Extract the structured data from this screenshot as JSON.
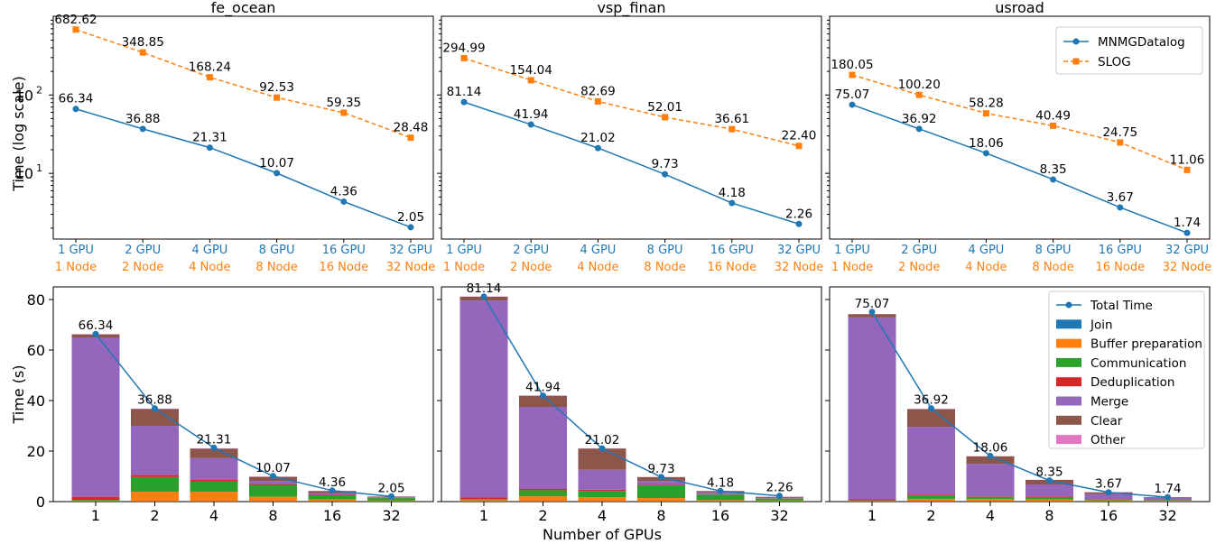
{
  "figure": {
    "xlabel": "Number of GPUs",
    "top_ylabel": "Time (log scale)",
    "bottom_ylabel": "Time (s)"
  },
  "colors": {
    "mnmg": "#1f77b4",
    "slog": "#ff7f0e",
    "join": "#1f77b4",
    "buffer": "#ff7f0e",
    "communication": "#2ca02c",
    "dedup": "#d62728",
    "merge": "#9467bd",
    "clear": "#8c564b",
    "other": "#e377c2"
  },
  "chart_data": [
    {
      "type": "line",
      "title": "fe_ocean",
      "ylabel": "Time (log scale)",
      "yscale": "log",
      "gpu_labels": [
        "1 GPU",
        "2 GPU",
        "4 GPU",
        "8 GPU",
        "16 GPU",
        "32 GPU"
      ],
      "node_labels": [
        "1 Node",
        "2 Node",
        "4 Node",
        "8 Node",
        "16 Node",
        "32 Node"
      ],
      "series": [
        {
          "key": "mnmg",
          "values": [
            66.34,
            36.88,
            21.31,
            10.07,
            4.36,
            2.05
          ],
          "labels": [
            "66.34",
            "36.88",
            "21.31",
            "10.07",
            "4.36",
            "2.05"
          ]
        },
        {
          "key": "slog",
          "values": [
            682.62,
            348.85,
            168.24,
            92.53,
            59.35,
            28.48
          ],
          "labels": [
            "682.62",
            "348.85",
            "168.24",
            "92.53",
            "59.35",
            "28.48"
          ]
        }
      ]
    },
    {
      "type": "line",
      "title": "vsp_finan",
      "yscale": "log",
      "gpu_labels": [
        "1 GPU",
        "2 GPU",
        "4 GPU",
        "8 GPU",
        "16 GPU",
        "32 GPU"
      ],
      "node_labels": [
        "1 Node",
        "2 Node",
        "4 Node",
        "8 Node",
        "16 Node",
        "32 Node"
      ],
      "series": [
        {
          "key": "mnmg",
          "values": [
            81.14,
            41.94,
            21.02,
            9.73,
            4.18,
            2.26
          ],
          "labels": [
            "81.14",
            "41.94",
            "21.02",
            "9.73",
            "4.18",
            "2.26"
          ]
        },
        {
          "key": "slog",
          "values": [
            294.99,
            154.04,
            82.69,
            52.01,
            36.61,
            22.4
          ],
          "labels": [
            "294.99",
            "154.04",
            "82.69",
            "52.01",
            "36.61",
            "22.40"
          ]
        }
      ]
    },
    {
      "type": "line",
      "title": "usroad",
      "yscale": "log",
      "gpu_labels": [
        "1 GPU",
        "2 GPU",
        "4 GPU",
        "8 GPU",
        "16 GPU",
        "32 GPU"
      ],
      "node_labels": [
        "1 Node",
        "2 Node",
        "4 Node",
        "8 Node",
        "16 Node",
        "32 Node"
      ],
      "legend": {
        "placement": "upper right",
        "entries": [
          {
            "key": "mnmg",
            "name": "MNMGDatalog"
          },
          {
            "key": "slog",
            "name": "SLOG"
          }
        ]
      },
      "series": [
        {
          "key": "mnmg",
          "name": "MNMGDatalog",
          "values": [
            75.07,
            36.92,
            18.06,
            8.35,
            3.67,
            1.74
          ],
          "labels": [
            "75.07",
            "36.92",
            "18.06",
            "8.35",
            "3.67",
            "1.74"
          ]
        },
        {
          "key": "slog",
          "name": "SLOG",
          "values": [
            180.05,
            100.2,
            58.28,
            40.49,
            24.75,
            11.06
          ],
          "labels": [
            "180.05",
            "100.20",
            "58.28",
            "40.49",
            "24.75",
            "11.06"
          ]
        }
      ]
    },
    {
      "type": "bar",
      "stacked": true,
      "ylabel": "Time (s)",
      "ylim": [
        0,
        85
      ],
      "categories": [
        "1",
        "2",
        "4",
        "8",
        "16",
        "32"
      ],
      "total": {
        "values": [
          66.34,
          36.88,
          21.31,
          10.07,
          4.36,
          2.05
        ],
        "labels": [
          "66.34",
          "36.88",
          "21.31",
          "10.07",
          "4.36",
          "2.05"
        ]
      },
      "stacks": [
        {
          "key": "join",
          "values": [
            0.1,
            0.1,
            0.1,
            0.1,
            0.1,
            0.1
          ]
        },
        {
          "key": "buffer",
          "values": [
            0.3,
            3.8,
            3.8,
            1.8,
            0.8,
            0.3
          ]
        },
        {
          "key": "communication",
          "values": [
            0.3,
            5.8,
            4.0,
            4.7,
            1.6,
            1.0
          ]
        },
        {
          "key": "dedup",
          "values": [
            1.2,
            0.8,
            0.8,
            0.4,
            0.2,
            0.1
          ]
        },
        {
          "key": "merge",
          "values": [
            63.1,
            19.5,
            8.5,
            1.2,
            0.7,
            0.3
          ]
        },
        {
          "key": "clear",
          "values": [
            1.2,
            6.6,
            3.7,
            1.6,
            0.8,
            0.2
          ]
        },
        {
          "key": "other",
          "values": [
            0.1,
            0.2,
            0.2,
            0.1,
            0.1,
            0.05
          ]
        }
      ]
    },
    {
      "type": "bar",
      "stacked": true,
      "ylim": [
        0,
        85
      ],
      "categories": [
        "1",
        "2",
        "4",
        "8",
        "16",
        "32"
      ],
      "total": {
        "values": [
          81.14,
          41.94,
          21.02,
          9.73,
          4.18,
          2.26
        ],
        "labels": [
          "81.14",
          "41.94",
          "21.02",
          "9.73",
          "4.18",
          "2.26"
        ]
      },
      "stacks": [
        {
          "key": "join",
          "values": [
            0.1,
            0.1,
            0.1,
            0.1,
            0.1,
            0.1
          ]
        },
        {
          "key": "buffer",
          "values": [
            0.5,
            2.0,
            1.6,
            1.3,
            0.5,
            0.3
          ]
        },
        {
          "key": "communication",
          "values": [
            0.4,
            2.4,
            2.5,
            5.0,
            2.2,
            0.8
          ]
        },
        {
          "key": "dedup",
          "values": [
            0.6,
            0.5,
            0.5,
            0.2,
            0.1,
            0.1
          ]
        },
        {
          "key": "merge",
          "values": [
            78.0,
            32.5,
            8.0,
            1.5,
            0.8,
            0.3
          ]
        },
        {
          "key": "clear",
          "values": [
            1.5,
            4.4,
            8.3,
            1.6,
            0.5,
            0.3
          ]
        },
        {
          "key": "other",
          "values": [
            0.1,
            0.1,
            0.1,
            0.05,
            0.05,
            0.05
          ]
        }
      ]
    },
    {
      "type": "bar",
      "stacked": true,
      "ylim": [
        0,
        85
      ],
      "categories": [
        "1",
        "2",
        "4",
        "8",
        "16",
        "32"
      ],
      "legend": {
        "placement": "upper right",
        "entries": [
          {
            "key": "total",
            "name": "Total Time",
            "marker": "line"
          },
          {
            "key": "join",
            "name": "Join"
          },
          {
            "key": "buffer",
            "name": "Buffer preparation"
          },
          {
            "key": "communication",
            "name": "Communication"
          },
          {
            "key": "dedup",
            "name": "Deduplication"
          },
          {
            "key": "merge",
            "name": "Merge"
          },
          {
            "key": "clear",
            "name": "Clear"
          },
          {
            "key": "other",
            "name": "Other"
          }
        ]
      },
      "total": {
        "name": "Total Time",
        "values": [
          75.07,
          36.92,
          18.06,
          8.35,
          3.67,
          1.74
        ],
        "labels": [
          "75.07",
          "36.92",
          "18.06",
          "8.35",
          "3.67",
          "1.74"
        ]
      },
      "stacks": [
        {
          "key": "join",
          "name": "Join",
          "values": [
            0.1,
            0.1,
            0.1,
            0.1,
            0.1,
            0.1
          ]
        },
        {
          "key": "buffer",
          "name": "Buffer preparation",
          "values": [
            0.2,
            1.0,
            0.9,
            0.8,
            0.4,
            0.2
          ]
        },
        {
          "key": "communication",
          "name": "Communication",
          "values": [
            0.2,
            1.3,
            0.9,
            0.9,
            0.4,
            0.3
          ]
        },
        {
          "key": "dedup",
          "name": "Deduplication",
          "values": [
            0.4,
            0.4,
            0.2,
            0.2,
            0.1,
            0.05
          ]
        },
        {
          "key": "merge",
          "name": "Merge",
          "values": [
            72.0,
            26.8,
            12.8,
            4.8,
            2.0,
            0.8
          ]
        },
        {
          "key": "clear",
          "name": "Clear",
          "values": [
            1.3,
            7.0,
            3.0,
            1.8,
            0.7,
            0.3
          ]
        },
        {
          "key": "other",
          "name": "Other",
          "values": [
            0.1,
            0.1,
            0.1,
            0.05,
            0.05,
            0.05
          ]
        }
      ]
    }
  ]
}
